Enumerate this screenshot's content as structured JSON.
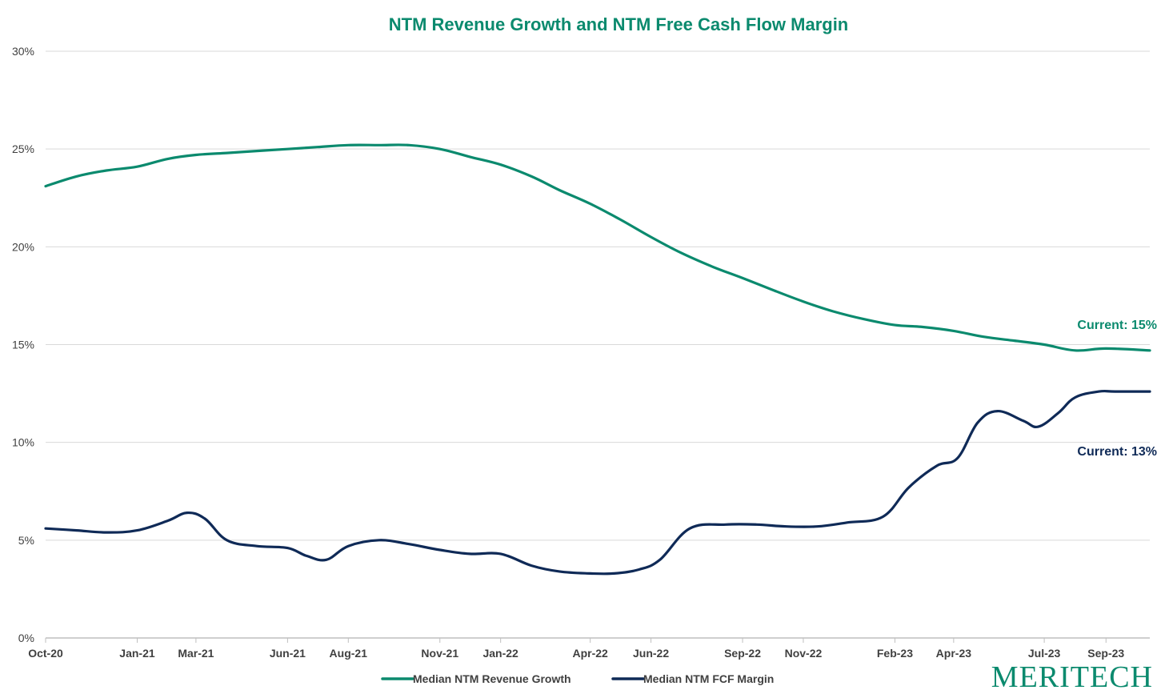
{
  "colors": {
    "revenue_growth": "#0b8a6e",
    "fcf_margin": "#0f2a57",
    "grid": "#d9d9d9",
    "axis": "#bfbfbf",
    "title": "#0b8a6e",
    "logo": "#0b8a6e"
  },
  "logo": {
    "text": "MERITECH"
  },
  "chart_data": {
    "type": "line",
    "title": "NTM Revenue Growth and NTM Free Cash Flow Margin",
    "xlabel": "",
    "ylabel": "",
    "x_tick_labels": [
      "Oct-20",
      "Jan-21",
      "Mar-21",
      "Jun-21",
      "Aug-21",
      "Nov-21",
      "Jan-22",
      "Apr-22",
      "Jun-22",
      "Sep-22",
      "Nov-22",
      "Feb-23",
      "Apr-23",
      "Jul-23",
      "Sep-23"
    ],
    "x_tick_dates": [
      "2020-10-01",
      "2021-01-01",
      "2021-03-01",
      "2021-06-01",
      "2021-08-01",
      "2021-11-01",
      "2022-01-01",
      "2022-04-01",
      "2022-06-01",
      "2022-09-01",
      "2022-11-01",
      "2023-02-01",
      "2023-04-01",
      "2023-07-01",
      "2023-09-01"
    ],
    "x_range": [
      "2020-10-01",
      "2023-10-15"
    ],
    "y_tick_labels": [
      "0%",
      "5%",
      "10%",
      "15%",
      "20%",
      "25%",
      "30%"
    ],
    "y_ticks": [
      0,
      5,
      10,
      15,
      20,
      25,
      30
    ],
    "ylim": [
      0,
      30
    ],
    "grid": true,
    "legend_position": "bottom",
    "series": [
      {
        "name": "Median NTM Revenue Growth",
        "color": "#0b8a6e",
        "points": [
          [
            "2020-10-01",
            23.1
          ],
          [
            "2020-11-01",
            23.6
          ],
          [
            "2020-12-01",
            23.9
          ],
          [
            "2021-01-01",
            24.1
          ],
          [
            "2021-02-01",
            24.5
          ],
          [
            "2021-03-01",
            24.7
          ],
          [
            "2021-04-01",
            24.8
          ],
          [
            "2021-05-01",
            24.9
          ],
          [
            "2021-06-01",
            25.0
          ],
          [
            "2021-07-01",
            25.1
          ],
          [
            "2021-08-01",
            25.2
          ],
          [
            "2021-09-01",
            25.2
          ],
          [
            "2021-10-01",
            25.2
          ],
          [
            "2021-11-01",
            25.0
          ],
          [
            "2021-12-01",
            24.6
          ],
          [
            "2022-01-01",
            24.2
          ],
          [
            "2022-02-01",
            23.6
          ],
          [
            "2022-03-01",
            22.9
          ],
          [
            "2022-04-01",
            22.2
          ],
          [
            "2022-05-01",
            21.4
          ],
          [
            "2022-06-01",
            20.5
          ],
          [
            "2022-07-01",
            19.7
          ],
          [
            "2022-08-01",
            19.0
          ],
          [
            "2022-09-01",
            18.4
          ],
          [
            "2022-10-01",
            17.8
          ],
          [
            "2022-11-01",
            17.2
          ],
          [
            "2022-12-01",
            16.7
          ],
          [
            "2023-01-01",
            16.3
          ],
          [
            "2023-02-01",
            16.0
          ],
          [
            "2023-03-01",
            15.9
          ],
          [
            "2023-04-01",
            15.7
          ],
          [
            "2023-05-01",
            15.4
          ],
          [
            "2023-06-01",
            15.2
          ],
          [
            "2023-07-01",
            15.0
          ],
          [
            "2023-08-01",
            14.7
          ],
          [
            "2023-09-01",
            14.8
          ],
          [
            "2023-10-15",
            14.7
          ]
        ]
      },
      {
        "name": "Median NTM FCF Margin",
        "color": "#0f2a57",
        "points": [
          [
            "2020-10-01",
            5.6
          ],
          [
            "2020-11-01",
            5.5
          ],
          [
            "2020-12-01",
            5.4
          ],
          [
            "2021-01-01",
            5.5
          ],
          [
            "2021-02-01",
            6.0
          ],
          [
            "2021-02-20",
            6.4
          ],
          [
            "2021-03-10",
            6.1
          ],
          [
            "2021-04-01",
            5.0
          ],
          [
            "2021-05-01",
            4.7
          ],
          [
            "2021-06-01",
            4.6
          ],
          [
            "2021-06-20",
            4.2
          ],
          [
            "2021-07-10",
            4.0
          ],
          [
            "2021-08-01",
            4.7
          ],
          [
            "2021-09-01",
            5.0
          ],
          [
            "2021-10-01",
            4.8
          ],
          [
            "2021-11-01",
            4.5
          ],
          [
            "2021-12-01",
            4.3
          ],
          [
            "2022-01-01",
            4.3
          ],
          [
            "2022-02-01",
            3.7
          ],
          [
            "2022-03-01",
            3.4
          ],
          [
            "2022-04-01",
            3.3
          ],
          [
            "2022-04-25",
            3.3
          ],
          [
            "2022-05-20",
            3.5
          ],
          [
            "2022-06-10",
            4.0
          ],
          [
            "2022-07-10",
            5.6
          ],
          [
            "2022-08-15",
            5.8
          ],
          [
            "2022-09-15",
            5.8
          ],
          [
            "2022-10-15",
            5.7
          ],
          [
            "2022-11-15",
            5.7
          ],
          [
            "2022-12-15",
            5.9
          ],
          [
            "2023-01-20",
            6.2
          ],
          [
            "2023-02-15",
            7.7
          ],
          [
            "2023-03-15",
            8.8
          ],
          [
            "2023-04-05",
            9.2
          ],
          [
            "2023-04-25",
            11.0
          ],
          [
            "2023-05-15",
            11.6
          ],
          [
            "2023-06-10",
            11.1
          ],
          [
            "2023-06-25",
            10.8
          ],
          [
            "2023-07-15",
            11.5
          ],
          [
            "2023-08-01",
            12.3
          ],
          [
            "2023-08-25",
            12.6
          ],
          [
            "2023-09-10",
            12.6
          ],
          [
            "2023-10-15",
            12.6
          ]
        ]
      }
    ],
    "annotations": [
      {
        "text": "Current: 15%",
        "series": 0
      },
      {
        "text": "Current: 13%",
        "series": 1
      }
    ]
  }
}
